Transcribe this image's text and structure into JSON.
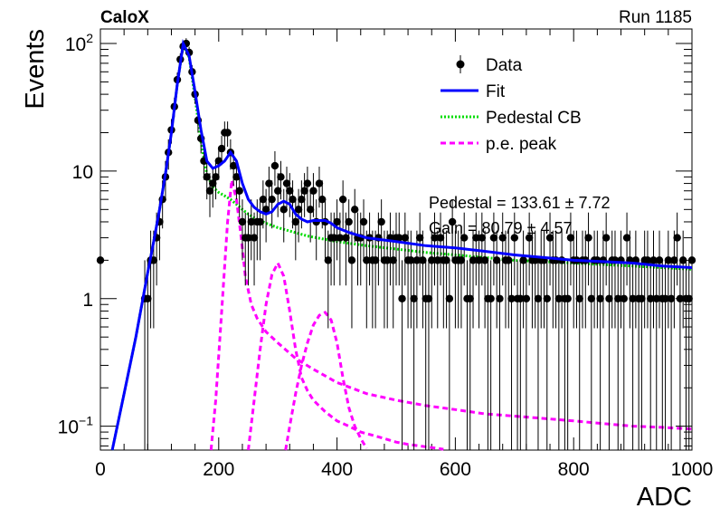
{
  "header": {
    "left_label": "CaloX",
    "right_label": "Run 1185"
  },
  "fit_results": {
    "pedestal_line": "Pedestal = 133.61 ± 7.72",
    "gain_line": "Gain = 80.79 ± 4.57"
  },
  "colors": {
    "data": "#000000",
    "fit": "#0000ff",
    "pedestal": "#00dd00",
    "pe": "#ff00ff"
  },
  "chart_data": {
    "type": "scatter",
    "xlabel": "ADC",
    "ylabel": "Events",
    "xlim": [
      0,
      1000
    ],
    "ylim": [
      0.065,
      130
    ],
    "yscale": "log",
    "grid": false,
    "legend_position": "top-right",
    "x_ticks": [
      0,
      200,
      400,
      600,
      800,
      1000
    ],
    "y_tick_labels": [
      {
        "value": 0.1,
        "label": "10",
        "sup": "−1"
      },
      {
        "value": 1,
        "label": "1",
        "sup": ""
      },
      {
        "value": 10,
        "label": "10",
        "sup": ""
      },
      {
        "value": 100,
        "label": "10",
        "sup": "2"
      }
    ],
    "legend": [
      {
        "key": "data",
        "label": "Data"
      },
      {
        "key": "fit",
        "label": "Fit"
      },
      {
        "key": "pedestal",
        "label": "Pedestal CB"
      },
      {
        "key": "pe",
        "label": "p.e. peak"
      }
    ],
    "series": [
      {
        "key": "data",
        "label": "Data",
        "x": [
          0,
          75,
          80,
          85,
          90,
          95,
          100,
          105,
          110,
          115,
          120,
          125,
          130,
          135,
          140,
          145,
          150,
          155,
          160,
          165,
          170,
          175,
          180,
          185,
          190,
          195,
          200,
          205,
          210,
          215,
          220,
          225,
          230,
          235,
          240,
          245,
          250,
          255,
          260,
          265,
          270,
          275,
          280,
          285,
          290,
          295,
          300,
          305,
          310,
          315,
          320,
          325,
          330,
          335,
          340,
          345,
          350,
          355,
          360,
          365,
          370,
          375,
          380,
          385,
          390,
          395,
          400,
          405,
          410,
          415,
          420,
          425,
          430,
          435,
          440,
          445,
          450,
          455,
          460,
          465,
          470,
          475,
          480,
          485,
          490,
          495,
          500,
          505,
          510,
          515,
          520,
          525,
          530,
          535,
          540,
          545,
          550,
          555,
          560,
          565,
          570,
          575,
          580,
          585,
          590,
          595,
          600,
          605,
          610,
          615,
          620,
          625,
          630,
          635,
          640,
          645,
          650,
          655,
          660,
          665,
          670,
          675,
          680,
          685,
          690,
          695,
          700,
          705,
          710,
          715,
          720,
          725,
          730,
          735,
          740,
          745,
          750,
          755,
          760,
          765,
          770,
          775,
          780,
          785,
          790,
          795,
          800,
          805,
          810,
          815,
          820,
          825,
          830,
          835,
          840,
          845,
          850,
          855,
          860,
          865,
          870,
          875,
          880,
          885,
          890,
          895,
          900,
          905,
          910,
          915,
          920,
          925,
          930,
          935,
          940,
          945,
          950,
          955,
          960,
          965,
          970,
          975,
          980,
          985,
          990,
          995,
          1000
        ],
        "y": [
          2,
          1,
          1,
          2,
          2,
          3,
          4,
          6,
          9,
          14,
          21,
          32,
          52,
          75,
          95,
          100,
          85,
          60,
          40,
          25,
          18,
          12,
          9,
          7,
          8,
          9,
          12,
          15,
          20,
          20,
          14,
          11,
          9,
          7,
          4,
          3,
          3,
          4,
          3,
          4,
          4,
          6,
          5,
          8,
          6,
          11,
          7,
          9,
          5,
          8,
          7,
          6,
          4,
          5,
          6,
          7,
          8,
          5,
          7,
          4,
          8,
          6,
          4,
          2,
          3,
          3,
          4,
          3,
          6,
          3,
          4,
          2,
          5,
          3,
          3,
          4,
          2,
          3,
          2,
          2,
          3,
          4,
          2,
          2,
          3,
          2,
          3,
          3,
          1,
          3,
          2,
          2,
          1,
          2,
          3,
          2,
          1,
          1,
          2,
          3,
          2,
          3,
          2,
          2,
          1,
          4,
          2,
          2,
          2,
          3,
          1,
          1,
          2,
          3,
          2,
          3,
          2,
          1,
          1,
          3,
          2,
          1,
          3,
          2,
          2,
          1,
          3,
          1,
          1,
          2,
          1,
          3,
          2,
          2,
          1,
          2,
          2,
          1,
          3,
          2,
          2,
          1,
          2,
          1,
          1,
          3,
          2,
          2,
          1,
          2,
          2,
          3,
          1,
          2,
          2,
          1,
          2,
          3,
          1,
          2,
          2,
          1,
          2,
          1,
          3,
          2,
          1,
          2,
          1,
          1,
          2,
          2,
          1,
          2,
          1,
          2,
          1,
          1,
          2,
          1,
          2,
          3,
          1,
          2,
          1,
          1,
          2
        ]
      },
      {
        "key": "fit",
        "label": "Fit",
        "x": [
          20,
          40,
          60,
          80,
          90,
          100,
          110,
          120,
          130,
          140,
          150,
          160,
          170,
          180,
          190,
          200,
          210,
          220,
          230,
          240,
          250,
          260,
          270,
          280,
          290,
          300,
          310,
          320,
          330,
          340,
          350,
          360,
          370,
          380,
          390,
          400,
          420,
          450,
          500,
          550,
          600,
          650,
          700,
          750,
          800,
          850,
          900,
          950,
          1000
        ],
        "y": [
          0.065,
          0.18,
          0.5,
          1.6,
          2.8,
          5,
          9.5,
          20,
          48,
          100,
          80,
          42,
          21,
          12,
          10.5,
          11,
          12,
          14,
          12,
          8,
          6,
          5.2,
          4.8,
          4.6,
          4.8,
          5.5,
          5.8,
          5.5,
          4.6,
          4.2,
          4.0,
          4.1,
          4.1,
          4.1,
          3.9,
          3.6,
          3.3,
          3.0,
          2.8,
          2.6,
          2.5,
          2.35,
          2.2,
          2.1,
          2.0,
          1.95,
          1.9,
          1.8,
          1.75
        ]
      },
      {
        "key": "pedestal",
        "label": "Pedestal CB",
        "x": [
          20,
          40,
          60,
          80,
          90,
          100,
          110,
          120,
          130,
          140,
          150,
          160,
          170,
          180,
          190,
          200,
          210,
          220,
          230,
          240,
          250,
          260,
          280,
          300,
          350,
          400,
          450,
          500,
          550,
          600,
          650,
          700,
          750,
          800,
          850,
          900,
          950,
          1000
        ],
        "y": [
          0.065,
          0.18,
          0.5,
          1.6,
          2.8,
          5,
          9.5,
          20,
          48,
          98,
          78,
          38,
          17,
          9.5,
          7.5,
          6.8,
          6.4,
          6.0,
          5.5,
          5.0,
          4.6,
          4.3,
          3.9,
          3.6,
          3.1,
          2.8,
          2.6,
          2.45,
          2.3,
          2.2,
          2.1,
          2.0,
          1.95,
          1.9,
          1.85,
          1.8,
          1.75,
          1.7
        ]
      },
      {
        "key": "pe",
        "label": "p.e. peak",
        "segments": [
          {
            "x": [
              187,
              195,
              205,
              215,
              222,
              230,
              238,
              245,
              255,
              265,
              280,
              300,
              330,
              360,
              400,
              450,
              500,
              550,
              600,
              650,
              700,
              750,
              800,
              850,
              900,
              950,
              1000
            ],
            "y": [
              0.065,
              0.16,
              0.8,
              4.0,
              8.5,
              6.0,
              3.0,
              1.5,
              0.9,
              0.7,
              0.55,
              0.45,
              0.34,
              0.28,
              0.22,
              0.18,
              0.16,
              0.145,
              0.135,
              0.125,
              0.12,
              0.115,
              0.11,
              0.105,
              0.1,
              0.098,
              0.095
            ]
          },
          {
            "x": [
              250,
              260,
              270,
              280,
              290,
              300,
              310,
              320,
              330,
              340,
              350,
              360,
              380,
              400,
              420,
              440,
              460,
              480,
              500,
              520,
              540,
              560,
              580
            ],
            "y": [
              0.065,
              0.16,
              0.4,
              0.9,
              1.55,
              1.9,
              1.5,
              0.8,
              0.4,
              0.24,
              0.19,
              0.16,
              0.13,
              0.11,
              0.1,
              0.09,
              0.085,
              0.08,
              0.075,
              0.072,
              0.07,
              0.068,
              0.066
            ]
          },
          {
            "x": [
              313,
              320,
              330,
              340,
              350,
              360,
              370,
              380,
              390,
              400,
              410,
              420,
              430,
              440,
              450
            ],
            "y": [
              0.065,
              0.1,
              0.18,
              0.3,
              0.45,
              0.62,
              0.74,
              0.78,
              0.68,
              0.45,
              0.24,
              0.14,
              0.1,
              0.08,
              0.067
            ]
          }
        ]
      }
    ]
  }
}
